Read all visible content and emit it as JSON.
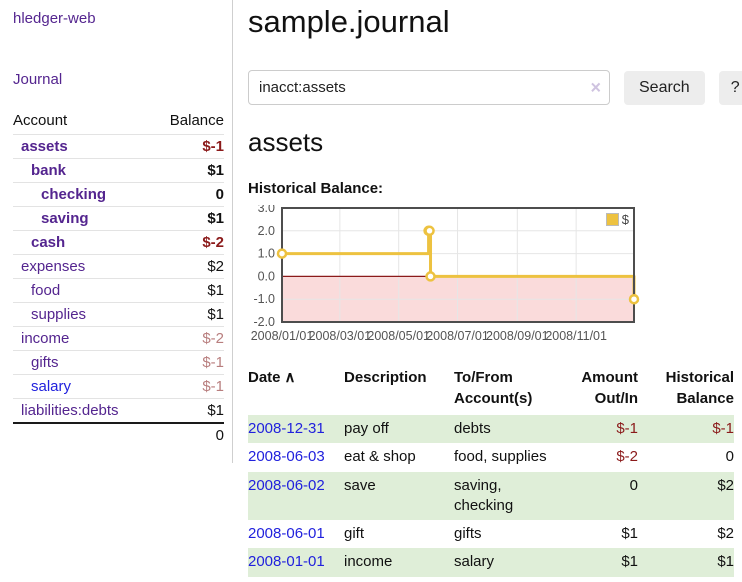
{
  "app": {
    "title": "hledger-web"
  },
  "colors": {
    "link_purple": "#54258f",
    "link_blue": "#2121dd",
    "negative_strong": "#8b1a1a",
    "negative_faded": "#b87e7e",
    "row_stripe_green": "#dfeed8",
    "series_gold": "#edc240"
  },
  "sidebar": {
    "journal_label": "Journal",
    "account_header": "Account",
    "balance_header": "Balance",
    "accounts": [
      {
        "name": "assets",
        "balance": "$-1"
      },
      {
        "name": "bank",
        "balance": "$1"
      },
      {
        "name": "checking",
        "balance": "0"
      },
      {
        "name": "saving",
        "balance": "$1"
      },
      {
        "name": "cash",
        "balance": "$-2"
      },
      {
        "name": "expenses",
        "balance": "$2"
      },
      {
        "name": "food",
        "balance": "$1"
      },
      {
        "name": "supplies",
        "balance": "$1"
      },
      {
        "name": "income",
        "balance": "$-2"
      },
      {
        "name": "gifts",
        "balance": "$-1"
      },
      {
        "name": "salary",
        "balance": "$-1"
      },
      {
        "name": "liabilities:debts",
        "balance": "$1"
      }
    ],
    "total": "0"
  },
  "main": {
    "title": "sample.journal",
    "search": {
      "value": "inacct:assets",
      "clear_icon": "×",
      "button_label": "Search",
      "help_label": "?"
    },
    "account_heading": "assets",
    "chart_heading": "Historical Balance:"
  },
  "chart_data": {
    "type": "line",
    "step": true,
    "title": "Historical Balance:",
    "series": [
      {
        "name": "$",
        "color": "#edc240",
        "points": [
          [
            "2008-01-01",
            1
          ],
          [
            "2008-06-01",
            2
          ],
          [
            "2008-06-02",
            2
          ],
          [
            "2008-06-03",
            0
          ],
          [
            "2008-12-31",
            -1
          ]
        ]
      }
    ],
    "xlim": [
      "2008-01-01",
      "2008-12-31"
    ],
    "ylim": [
      -2,
      3
    ],
    "x_ticks": [
      "2008/01/01",
      "2008/03/01",
      "2008/05/01",
      "2008/07/01",
      "2008/09/01",
      "2008/11/01"
    ],
    "y_ticks": [
      3.0,
      2.0,
      1.0,
      0.0,
      -1.0,
      -2.0
    ],
    "grid": true,
    "negative_region_color": "#fadbdb",
    "zero_line_color": "#8b1a1a",
    "legend": {
      "label": "$",
      "position": "top-right"
    }
  },
  "register": {
    "headers": [
      "Date",
      "Description",
      "To/From Account(s)",
      "Amount Out/In",
      "Historical Balance"
    ],
    "sort_indicator": "∧",
    "rows": [
      {
        "date": "2008-12-31",
        "description": "pay off",
        "accounts": "debts",
        "amount": "$-1",
        "balance": "$-1"
      },
      {
        "date": "2008-06-03",
        "description": "eat & shop",
        "accounts": "food, supplies",
        "amount": "$-2",
        "balance": "0"
      },
      {
        "date": "2008-06-02",
        "description": "save",
        "accounts": "saving, checking",
        "amount": "0",
        "balance": "$2"
      },
      {
        "date": "2008-06-01",
        "description": "gift",
        "accounts": "gifts",
        "amount": "$1",
        "balance": "$2"
      },
      {
        "date": "2008-01-01",
        "description": "income",
        "accounts": "salary",
        "amount": "$1",
        "balance": "$1"
      }
    ]
  }
}
